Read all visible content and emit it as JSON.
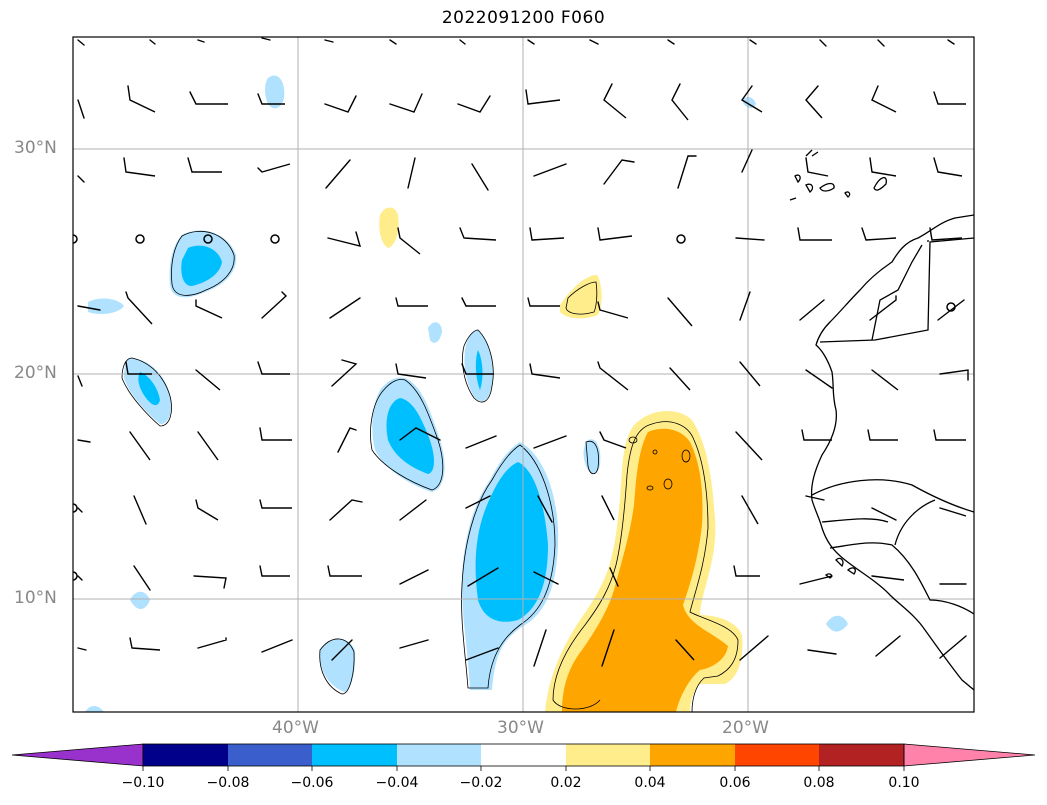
{
  "title": "2022091200 F060",
  "axes": {
    "lat_labels": [
      "30°N",
      "20°N",
      "10°N"
    ],
    "lon_labels": [
      "40°W",
      "30°W",
      "20°W"
    ]
  },
  "colorbar": {
    "ticks": [
      "−0.10",
      "−0.08",
      "−0.06",
      "−0.04",
      "−0.02",
      "0.02",
      "0.04",
      "0.06",
      "0.08",
      "0.10"
    ],
    "colors": [
      "#9932cc",
      "#00008b",
      "#3a5fcd",
      "#00bfff",
      "#b0e2ff",
      "#ffffff",
      "#ffec8b",
      "#ffa500",
      "#ff4500",
      "#b22222",
      "#ff82ab"
    ]
  },
  "map_colors": {
    "grid": "#b0b0b0",
    "coast": "#000000",
    "light_blue": "#b0e2ff",
    "blue": "#00bfff",
    "light_yellow": "#ffec8b",
    "orange": "#ffa500"
  }
}
